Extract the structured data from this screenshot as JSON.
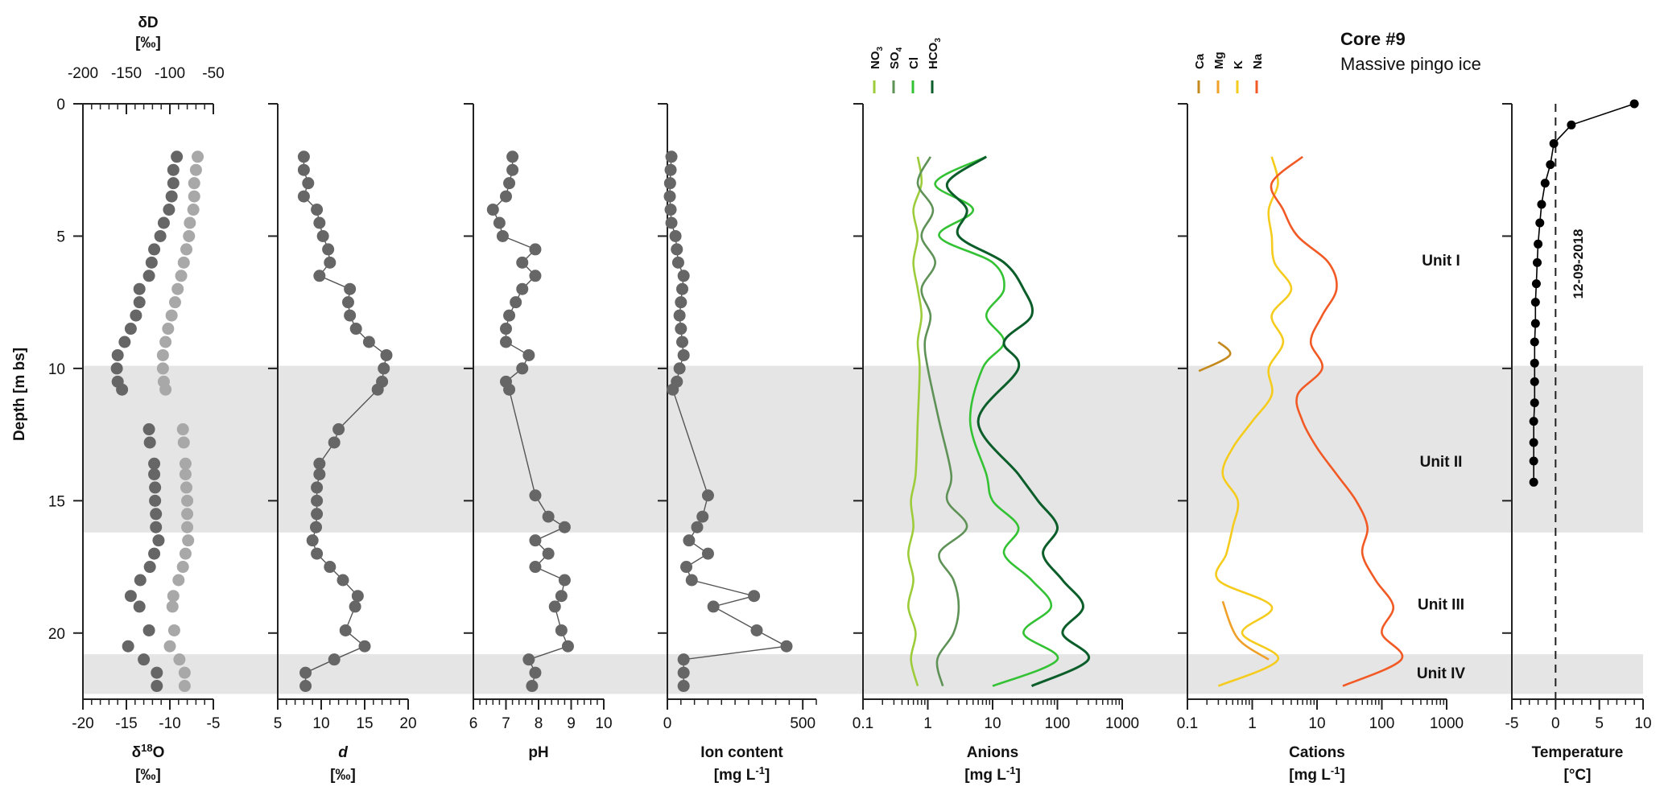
{
  "title": "Core #9",
  "subtitle": "Massive pingo ice",
  "date_label": "12-09-2018",
  "shared_y": {
    "label": "Depth [m bs]",
    "range": [
      0,
      22.5
    ],
    "ticks": [
      0,
      5,
      10,
      15,
      20
    ]
  },
  "units": [
    {
      "name": "Unit I",
      "depth": 5.9
    },
    {
      "name": "Unit II",
      "depth": 13.5
    },
    {
      "name": "Unit III",
      "depth": 18.9
    },
    {
      "name": "Unit IV",
      "depth": 21.5
    }
  ],
  "chart_data": [
    {
      "type": "scatter",
      "xlabel": "δ18O",
      "xunit": "[‰]",
      "xlim": [
        -20,
        -5
      ],
      "xticks": [
        -20,
        -15,
        -10,
        -5
      ],
      "top_axis": {
        "label": "δD",
        "unit": "[‰]",
        "ticks": [
          -200,
          -150,
          -100,
          -50
        ],
        "xlim": [
          -200,
          -50
        ]
      },
      "shaded_depths": [
        [
          9.9,
          16.2
        ],
        [
          20.8,
          22.3
        ]
      ],
      "series": [
        {
          "name": "δ18O",
          "color": "#666666",
          "y": [
            2,
            2.5,
            3,
            3.5,
            4,
            4.5,
            5,
            5.5,
            6,
            6.5,
            7,
            7.5,
            8,
            8.5,
            9,
            9.5,
            10,
            10.5,
            10.8,
            12.3,
            12.8,
            13.6,
            14,
            14.5,
            15,
            15.5,
            16,
            16.5,
            17,
            17.5,
            18,
            18.6,
            19,
            19.9,
            20.5,
            21,
            21.5,
            22
          ],
          "x": [
            -9.2,
            -9.6,
            -9.6,
            -9.8,
            -10.1,
            -10.7,
            -11.1,
            -11.8,
            -12.1,
            -12.4,
            -13.5,
            -13.5,
            -13.9,
            -14.5,
            -15.2,
            -16,
            -16.1,
            -16,
            -15.5,
            -12.4,
            -12.3,
            -11.8,
            -11.8,
            -11.7,
            -11.7,
            -11.6,
            -11.6,
            -11.3,
            -11.8,
            -12.3,
            -13.4,
            -14.5,
            -13.5,
            -12.4,
            -14.8,
            -13,
            -11.5,
            -11.5
          ]
        },
        {
          "name": "δD",
          "color": "#a8a8a8",
          "y": [
            2,
            2.5,
            3,
            3.5,
            4,
            4.5,
            5,
            5.5,
            6,
            6.5,
            7,
            7.5,
            8,
            8.5,
            9,
            9.5,
            10,
            10.5,
            10.8,
            12.3,
            12.8,
            13.6,
            14,
            14.5,
            15,
            15.5,
            16,
            16.5,
            17,
            17.5,
            18,
            18.6,
            19,
            19.9,
            20.5,
            21,
            21.5,
            22
          ],
          "x": [
            -68,
            -70,
            -72,
            -72,
            -73,
            -77,
            -78,
            -81,
            -84,
            -87,
            -91,
            -94,
            -98,
            -102,
            -105,
            -108,
            -108,
            -107,
            -105,
            -85,
            -84,
            -82,
            -82,
            -81,
            -80,
            -80,
            -80,
            -79,
            -82,
            -85,
            -90,
            -96,
            -97,
            -95,
            -100,
            -89,
            -83,
            -83
          ]
        }
      ]
    },
    {
      "type": "line",
      "xlabel": "d",
      "xunit": "[‰]",
      "xlim": [
        5,
        20
      ],
      "xticks": [
        5,
        10,
        15,
        20
      ],
      "shaded_depths": [
        [
          9.9,
          16.2
        ],
        [
          20.8,
          22.3
        ]
      ],
      "series": [
        {
          "name": "d",
          "color": "#666666",
          "y": [
            2,
            2.5,
            3,
            3.5,
            4,
            4.5,
            5,
            5.5,
            6,
            6.5,
            7,
            7.5,
            8,
            8.5,
            9,
            9.5,
            10,
            10.5,
            10.8,
            12.3,
            12.8,
            13.6,
            14,
            14.5,
            15,
            15.5,
            16,
            16.5,
            17,
            17.5,
            18,
            18.6,
            19,
            19.9,
            20.5,
            21,
            21.5,
            22
          ],
          "x": [
            8,
            8,
            8.5,
            8,
            9.5,
            9.8,
            10.2,
            10.8,
            11,
            9.8,
            13.3,
            13.1,
            13.3,
            14,
            15.5,
            17.5,
            17.2,
            17,
            16.5,
            12,
            11.5,
            9.8,
            9.8,
            9.5,
            9.5,
            9.5,
            9.4,
            9,
            9.5,
            11,
            12.5,
            14.2,
            13.9,
            12.8,
            15,
            11.5,
            8.2,
            8.2
          ]
        }
      ]
    },
    {
      "type": "line",
      "xlabel": "pH",
      "xunit": "",
      "xlim": [
        6,
        10
      ],
      "xticks": [
        6,
        7,
        8,
        9,
        10
      ],
      "shaded_depths": [
        [
          9.9,
          16.2
        ],
        [
          20.8,
          22.3
        ]
      ],
      "series": [
        {
          "name": "pH",
          "color": "#666666",
          "y": [
            2,
            2.5,
            3,
            3.5,
            4,
            4.5,
            5,
            5.5,
            6,
            6.5,
            7,
            7.5,
            8,
            8.5,
            9,
            9.5,
            10,
            10.5,
            10.8,
            14.8,
            15.6,
            16,
            16.5,
            17,
            17.5,
            18,
            18.6,
            19,
            19.9,
            20.5,
            21,
            21.5,
            22
          ],
          "x": [
            7.2,
            7.2,
            7.1,
            7,
            6.6,
            6.8,
            6.9,
            7.9,
            7.5,
            7.9,
            7.5,
            7.3,
            7.1,
            7,
            7,
            7.7,
            7.5,
            7,
            7.1,
            7.9,
            8.3,
            8.8,
            7.9,
            8.3,
            7.9,
            8.8,
            8.7,
            8.5,
            8.7,
            8.9,
            7.7,
            7.9,
            7.8
          ]
        }
      ]
    },
    {
      "type": "line",
      "xlabel": "Ion content",
      "xunit": "[mg L-1]",
      "xlim": [
        0,
        550
      ],
      "xticks": [
        0,
        500
      ],
      "shaded_depths": [
        [
          9.9,
          16.2
        ],
        [
          20.8,
          22.3
        ]
      ],
      "series": [
        {
          "name": "Ion content",
          "color": "#666666",
          "y": [
            2,
            2.5,
            3,
            3.5,
            4,
            4.5,
            5,
            5.5,
            6,
            6.5,
            7,
            7.5,
            8,
            8.5,
            9,
            9.5,
            10,
            10.5,
            10.8,
            14.8,
            15.6,
            16,
            16.5,
            17,
            17.5,
            18,
            18.6,
            19,
            19.9,
            20.5,
            21,
            21.5,
            22
          ],
          "x": [
            15,
            12,
            10,
            9,
            12,
            15,
            30,
            35,
            40,
            60,
            55,
            50,
            45,
            50,
            55,
            60,
            45,
            35,
            20,
            150,
            130,
            110,
            80,
            150,
            70,
            90,
            320,
            170,
            330,
            440,
            60,
            60,
            60
          ]
        }
      ]
    },
    {
      "type": "line",
      "xlabel": "Anions",
      "xunit": "[mg L-1]",
      "xscale": "log",
      "xlim": [
        0.1,
        1000
      ],
      "xticks": [
        "0.1",
        "1",
        "10",
        "100",
        "1000"
      ],
      "shaded_depths": [
        [
          9.9,
          16.2
        ],
        [
          20.8,
          22.3
        ]
      ],
      "legend": [
        "NO3",
        "SO4",
        "Cl",
        "HCO3"
      ],
      "series": [
        {
          "name": "NO3",
          "color": "#9ccc3a",
          "y": [
            2,
            3,
            4,
            5,
            6,
            7,
            8,
            9,
            10,
            12,
            14,
            15,
            16,
            17,
            18,
            19,
            20,
            21,
            22
          ],
          "x": [
            0.7,
            0.8,
            0.6,
            0.7,
            0.6,
            0.7,
            0.8,
            0.7,
            0.75,
            0.7,
            0.65,
            0.55,
            0.6,
            0.5,
            0.6,
            0.5,
            0.65,
            0.55,
            0.7
          ]
        },
        {
          "name": "SO4",
          "color": "#5e9256",
          "y": [
            2,
            3,
            4,
            5,
            6,
            7,
            8,
            9,
            10,
            12,
            14,
            15,
            16,
            17,
            18,
            19,
            20,
            21,
            22
          ],
          "x": [
            1.1,
            0.7,
            1.2,
            0.8,
            1.3,
            0.8,
            1.1,
            0.9,
            1,
            1.5,
            2.3,
            2,
            4,
            1.5,
            2.5,
            3,
            2.5,
            1.4,
            1.7
          ]
        },
        {
          "name": "Cl",
          "color": "#33c233",
          "y": [
            2,
            3,
            4,
            5,
            6,
            7,
            8,
            9,
            10,
            12,
            14,
            15,
            16,
            17,
            18,
            19,
            20,
            21,
            22
          ],
          "x": [
            8,
            1.3,
            5,
            1.5,
            10,
            15,
            8,
            15,
            7,
            4.5,
            8,
            10,
            25,
            15,
            40,
            80,
            30,
            100,
            10
          ]
        },
        {
          "name": "HCO3",
          "color": "#0b5e2a",
          "y": [
            2,
            3,
            4,
            5,
            6,
            7,
            8,
            9,
            10,
            12,
            14,
            15,
            16,
            17,
            18,
            19,
            20,
            21,
            22
          ],
          "x": [
            8,
            2,
            4,
            3,
            15,
            30,
            40,
            15,
            25,
            6,
            25,
            50,
            100,
            60,
            120,
            250,
            120,
            300,
            40
          ]
        }
      ]
    },
    {
      "type": "line",
      "xlabel": "Cations",
      "xunit": "[mg L-1]",
      "xscale": "log",
      "xlim": [
        0.1,
        1000
      ],
      "xticks": [
        "0.1",
        "1",
        "10",
        "100",
        "1000"
      ],
      "shaded_depths": [
        [
          9.9,
          16.2
        ],
        [
          20.8,
          22.3
        ]
      ],
      "legend": [
        "Ca",
        "Mg",
        "K",
        "Na"
      ],
      "series": [
        {
          "name": "Ca",
          "color": "#c58a1e",
          "y": [
            9,
            9.5,
            10.1
          ],
          "x": [
            0.3,
            0.45,
            0.15
          ]
        },
        {
          "name": "Mg",
          "color": "#f0a028",
          "y": [
            18.8,
            20.2,
            21
          ],
          "x": [
            0.35,
            0.6,
            1.8
          ]
        },
        {
          "name": "K",
          "color": "#f5cc1e",
          "y": [
            2,
            3,
            4,
            5,
            6,
            7,
            8,
            9,
            10,
            11,
            12,
            13,
            14,
            15,
            16,
            17,
            18,
            19,
            20,
            21,
            22
          ],
          "x": [
            2,
            2.5,
            1.8,
            2,
            2.2,
            4,
            2,
            3,
            1.8,
            2,
            1,
            0.5,
            0.35,
            0.6,
            0.5,
            0.4,
            0.3,
            2,
            0.7,
            2.5,
            0.3
          ]
        },
        {
          "name": "Na",
          "color": "#f25a25",
          "y": [
            2,
            3,
            4,
            5,
            6,
            7,
            8,
            9,
            10,
            11,
            12,
            13,
            14,
            15,
            16,
            17,
            18,
            19,
            20,
            21,
            22
          ],
          "x": [
            6,
            2,
            3,
            5,
            15,
            20,
            12,
            8,
            12,
            5,
            6,
            10,
            20,
            40,
            60,
            50,
            80,
            150,
            100,
            200,
            25
          ]
        }
      ]
    },
    {
      "type": "line",
      "xlabel": "Temperature",
      "xunit": "[°C]",
      "xlim": [
        -5,
        10
      ],
      "xticks": [
        -5,
        0,
        5,
        10
      ],
      "reference_x": 0,
      "series": [
        {
          "name": "Temperature",
          "color": "#000000",
          "y": [
            0,
            0.8,
            1.5,
            2.3,
            3.0,
            3.8,
            4.5,
            5.3,
            6.0,
            6.8,
            7.5,
            8.3,
            9.0,
            9.8,
            10.5,
            11.3,
            12.0,
            12.8,
            13.5,
            14.3
          ],
          "x": [
            9,
            1.8,
            -0.2,
            -0.6,
            -1.2,
            -1.6,
            -1.8,
            -2,
            -2.1,
            -2.2,
            -2.3,
            -2.3,
            -2.4,
            -2.4,
            -2.4,
            -2.4,
            -2.5,
            -2.5,
            -2.5,
            -2.5
          ]
        }
      ]
    }
  ]
}
